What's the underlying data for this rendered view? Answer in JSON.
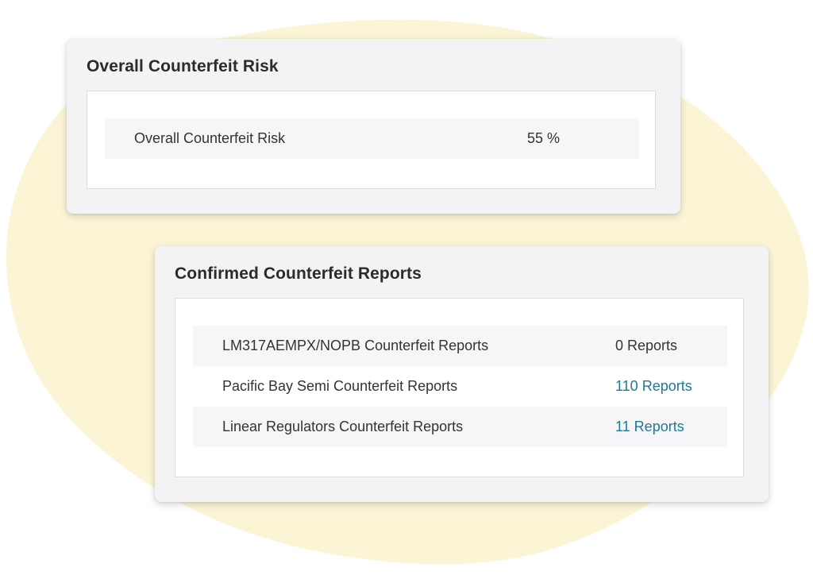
{
  "overall_risk_card": {
    "title": "Overall Counterfeit Risk",
    "rows": [
      {
        "label": "Overall Counterfeit Risk",
        "value": "55 %"
      }
    ]
  },
  "reports_card": {
    "title": "Confirmed Counterfeit Reports",
    "rows": [
      {
        "label": "LM317AEMPX/NOPB Counterfeit Reports",
        "value": "0 Reports"
      },
      {
        "label": "Pacific Bay Semi Counterfeit Reports",
        "value": "110 Reports"
      },
      {
        "label": "Linear Regulators Counterfeit Reports",
        "value": "11 Reports"
      }
    ]
  },
  "colors": {
    "blob": "#fbf5d6",
    "card_bg": "#f3f3f5",
    "link": "#1a7a98",
    "text": "#333333"
  }
}
